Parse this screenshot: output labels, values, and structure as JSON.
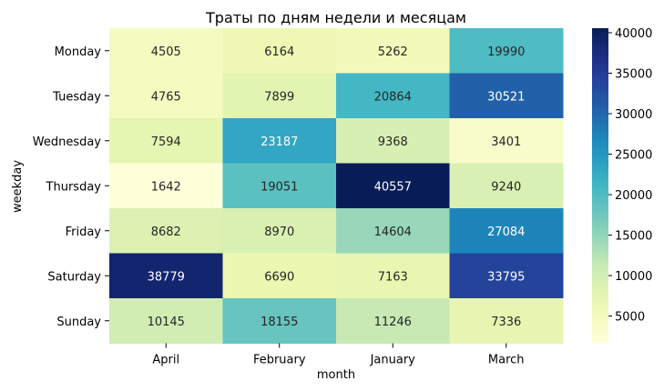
{
  "chart_data": {
    "type": "heatmap",
    "title": "Траты по дням недели и месяцам",
    "xlabel": "month",
    "ylabel": "weekday",
    "x_categories": [
      "April",
      "February",
      "January",
      "March"
    ],
    "y_categories": [
      "Monday",
      "Tuesday",
      "Wednesday",
      "Thursday",
      "Friday",
      "Saturday",
      "Sunday"
    ],
    "values": [
      [
        4505,
        6164,
        5262,
        19990
      ],
      [
        4765,
        7899,
        20864,
        30521
      ],
      [
        7594,
        23187,
        9368,
        3401
      ],
      [
        1642,
        19051,
        40557,
        9240
      ],
      [
        8682,
        8970,
        14604,
        27084
      ],
      [
        38779,
        6690,
        7163,
        33795
      ],
      [
        10145,
        18155,
        11246,
        7336
      ]
    ],
    "colormap": "YlGnBu",
    "vmin": 1642,
    "vmax": 40557,
    "colorbar_ticks": [
      5000,
      10000,
      15000,
      20000,
      25000,
      30000,
      35000,
      40000
    ]
  }
}
